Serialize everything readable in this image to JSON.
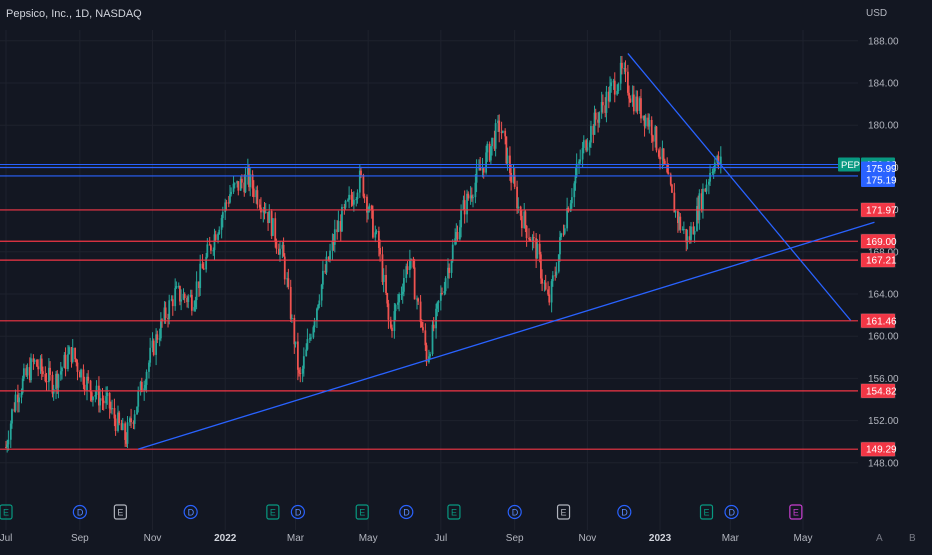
{
  "header": {
    "title": "Pepsico, Inc., 1D, NASDAQ",
    "currency": "USD"
  },
  "colors": {
    "background": "#131722",
    "up": "#26a69a",
    "down": "#ef5350",
    "blue_line": "#2962ff",
    "red_line": "#f23645",
    "grid": "#1e222d"
  },
  "chart_data": {
    "type": "candlestick",
    "symbol": "PEP",
    "last_price": "176.28",
    "price_ticks": [
      148,
      152,
      156,
      160,
      164,
      168,
      172,
      176,
      180,
      184,
      188
    ],
    "price_tick_labels": [
      "148.00",
      "152.00",
      "156.00",
      "160.00",
      "164.00",
      "168.00",
      "172.00",
      "176.00",
      "180.00",
      "184.00",
      "188.00"
    ],
    "x_ticks": [
      "Jul",
      "Sep",
      "Nov",
      "2022",
      "Mar",
      "May",
      "Jul",
      "Sep",
      "Nov",
      "2023",
      "Mar",
      "May"
    ],
    "x_start": "Jul 2021",
    "x_end": "Jun 2023",
    "x_tick_dates": [
      "2021-07-01",
      "2021-09-01",
      "2021-11-01",
      "2022-01-01",
      "2022-03-01",
      "2022-05-01",
      "2022-07-01",
      "2022-09-01",
      "2022-11-01",
      "2023-01-01",
      "2023-03-01",
      "2023-05-01"
    ],
    "horizontal_levels": [
      {
        "price": 176.28,
        "label": "176.28",
        "color": "#089981",
        "kind": "last"
      },
      {
        "price": 175.99,
        "label": "175.99",
        "color": "#2962ff",
        "kind": "blue"
      },
      {
        "price": 175.19,
        "label": "175.19",
        "color": "#2962ff",
        "kind": "blue"
      },
      {
        "price": 171.97,
        "label": "171.97",
        "color": "#f23645",
        "kind": "red"
      },
      {
        "price": 169.0,
        "label": "169.00",
        "color": "#f23645",
        "kind": "red"
      },
      {
        "price": 167.21,
        "label": "167.21",
        "color": "#f23645",
        "kind": "red"
      },
      {
        "price": 161.46,
        "label": "161.46",
        "color": "#f23645",
        "kind": "red"
      },
      {
        "price": 154.82,
        "label": "154.82",
        "color": "#f23645",
        "kind": "red"
      },
      {
        "price": 149.29,
        "label": "149.29",
        "color": "#f23645",
        "kind": "red"
      }
    ],
    "trendlines": [
      {
        "from": [
          "2021-10-20",
          149.3
        ],
        "to": [
          "2023-06-30",
          170.8
        ]
      },
      {
        "from": [
          "2022-12-05",
          186.8
        ],
        "to": [
          "2023-06-10",
          161.5
        ]
      }
    ],
    "price_path": [
      [
        "2021-07-01",
        149.5
      ],
      [
        "2021-07-10",
        154.5
      ],
      [
        "2021-07-25",
        157.5
      ],
      [
        "2021-08-10",
        155.5
      ],
      [
        "2021-08-25",
        158.5
      ],
      [
        "2021-09-10",
        155.0
      ],
      [
        "2021-09-25",
        153.5
      ],
      [
        "2021-10-10",
        150.2
      ],
      [
        "2021-10-20",
        154.0
      ],
      [
        "2021-11-05",
        160.0
      ],
      [
        "2021-11-20",
        164.0
      ],
      [
        "2021-12-05",
        163.5
      ],
      [
        "2021-12-20",
        168.5
      ],
      [
        "2022-01-05",
        173.5
      ],
      [
        "2022-01-20",
        175.0
      ],
      [
        "2022-02-05",
        172.0
      ],
      [
        "2022-02-20",
        167.0
      ],
      [
        "2022-03-05",
        155.5
      ],
      [
        "2022-03-20",
        163.5
      ],
      [
        "2022-04-05",
        170.0
      ],
      [
        "2022-04-25",
        175.0
      ],
      [
        "2022-05-10",
        168.5
      ],
      [
        "2022-05-20",
        160.5
      ],
      [
        "2022-06-05",
        167.5
      ],
      [
        "2022-06-20",
        158.0
      ],
      [
        "2022-07-05",
        165.5
      ],
      [
        "2022-07-20",
        172.0
      ],
      [
        "2022-08-05",
        176.0
      ],
      [
        "2022-08-20",
        180.0
      ],
      [
        "2022-09-05",
        172.0
      ],
      [
        "2022-09-20",
        168.0
      ],
      [
        "2022-09-30",
        163.0
      ],
      [
        "2022-10-15",
        172.0
      ],
      [
        "2022-10-31",
        178.5
      ],
      [
        "2022-11-15",
        182.0
      ],
      [
        "2022-11-30",
        185.0
      ],
      [
        "2022-12-10",
        182.5
      ],
      [
        "2022-12-25",
        180.0
      ],
      [
        "2023-01-05",
        176.0
      ],
      [
        "2023-01-15",
        171.5
      ],
      [
        "2023-01-25",
        169.0
      ],
      [
        "2023-02-05",
        173.0
      ],
      [
        "2023-02-15",
        176.5
      ],
      [
        "2023-02-22",
        176.3
      ]
    ],
    "events": [
      {
        "date": "2021-07-01",
        "label": "E",
        "style": "earnings"
      },
      {
        "date": "2021-09-01",
        "label": "D",
        "style": "dividend"
      },
      {
        "date": "2021-10-05",
        "label": "E",
        "style": "earnings-gray"
      },
      {
        "date": "2021-12-03",
        "label": "D",
        "style": "dividend"
      },
      {
        "date": "2022-02-10",
        "label": "E",
        "style": "earnings"
      },
      {
        "date": "2022-03-03",
        "label": "D",
        "style": "dividend"
      },
      {
        "date": "2022-04-26",
        "label": "E",
        "style": "earnings"
      },
      {
        "date": "2022-06-02",
        "label": "D",
        "style": "dividend"
      },
      {
        "date": "2022-07-12",
        "label": "E",
        "style": "earnings"
      },
      {
        "date": "2022-09-01",
        "label": "D",
        "style": "dividend"
      },
      {
        "date": "2022-10-12",
        "label": "E",
        "style": "earnings-gray"
      },
      {
        "date": "2022-12-02",
        "label": "D",
        "style": "dividend"
      },
      {
        "date": "2023-02-09",
        "label": "E",
        "style": "earnings"
      },
      {
        "date": "2023-03-02",
        "label": "D",
        "style": "dividend"
      },
      {
        "date": "2023-04-25",
        "label": "E",
        "style": "earnings-purple"
      }
    ],
    "corner_buttons": [
      "A",
      "B"
    ]
  }
}
